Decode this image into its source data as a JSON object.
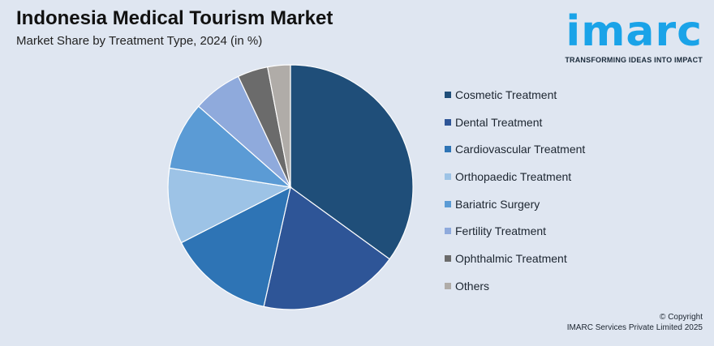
{
  "header": {
    "title": "Indonesia Medical Tourism Market",
    "subtitle": "Market Share by Treatment Type, 2024 (in %)"
  },
  "logo": {
    "word": "imarc",
    "tagline": "TRANSFORMING IDEAS INTO IMPACT",
    "color": "#1aa3e8"
  },
  "chart_data": {
    "type": "pie",
    "title": "Indonesia Medical Tourism Market",
    "subtitle": "Market Share by Treatment Type, 2024 (in %)",
    "legend_position": "right",
    "start_angle": "top, clockwise",
    "categories": [
      "Cosmetic Treatment",
      "Dental Treatment",
      "Cardiovascular Treatment",
      "Orthopaedic Treatment",
      "Bariatric Surgery",
      "Fertility Treatment",
      "Ophthalmic Treatment",
      "Others"
    ],
    "values": [
      35,
      18.5,
      14,
      10,
      9,
      6.5,
      4,
      3
    ],
    "colors": [
      "#1f4e79",
      "#2e5597",
      "#2e74b5",
      "#9dc3e6",
      "#5b9bd5",
      "#8faadc",
      "#6b6b6b",
      "#b0aca8"
    ]
  },
  "footer": {
    "copyright_line1": "© Copyright",
    "copyright_line2": "IMARC Services Private Limited 2025"
  }
}
